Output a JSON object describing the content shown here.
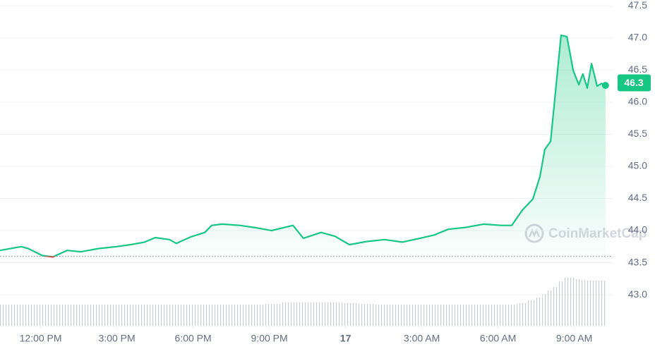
{
  "chart_data": {
    "type": "line",
    "x": [
      10.4,
      11.23,
      11.51,
      12.07,
      12.48,
      13.04,
      13.59,
      14.29,
      14.98,
      15.54,
      16.09,
      16.51,
      17.07,
      17.34,
      17.9,
      18.46,
      18.73,
      19.15,
      19.84,
      20.54,
      21.09,
      21.93,
      22.34,
      23.04,
      23.59,
      24.15,
      24.84,
      25.54,
      26.23,
      26.93,
      27.48,
      28.04,
      28.73,
      29.43,
      30.12,
      30.54,
      30.96,
      31.37,
      31.65,
      31.84,
      32.07,
      32.26,
      32.48,
      32.71,
      32.96,
      33.18,
      33.34,
      33.51,
      33.68,
      33.9,
      34.07,
      34.23
    ],
    "series": [
      {
        "color": "#16c784",
        "down_color": "#ea3943",
        "values": [
          43.69,
          43.75,
          43.72,
          43.61,
          43.59,
          43.69,
          43.67,
          43.72,
          43.75,
          43.78,
          43.82,
          43.89,
          43.86,
          43.8,
          43.9,
          43.97,
          44.08,
          44.1,
          44.08,
          44.04,
          44.0,
          44.08,
          43.88,
          43.97,
          43.91,
          43.78,
          43.83,
          43.86,
          43.82,
          43.88,
          43.93,
          44.02,
          44.05,
          44.1,
          44.08,
          44.08,
          44.32,
          44.49,
          44.84,
          45.26,
          45.39,
          46.16,
          47.04,
          47.02,
          46.49,
          46.27,
          46.44,
          46.22,
          46.6,
          46.25,
          46.29,
          46.26
        ]
      },
      {
        "color": "#c9ccd3",
        "values": [
          30,
          30,
          30,
          30,
          30,
          30,
          30,
          30,
          30,
          30,
          30,
          30,
          30,
          30,
          30,
          30,
          30,
          30,
          30,
          30,
          31,
          33,
          33,
          33,
          33,
          32,
          31,
          30,
          30,
          30,
          30,
          30,
          30,
          30,
          30,
          30,
          32,
          36,
          40,
          45,
          50,
          55,
          63,
          68,
          68,
          66,
          65,
          64,
          64,
          64,
          64,
          64
        ]
      }
    ],
    "baseline": 43.6,
    "current_price": 46.3,
    "watermark": "CoinMarketCap",
    "xlim": [
      10.4,
      34.4
    ],
    "xticks": [
      {
        "value": 12,
        "label": "12:00 PM"
      },
      {
        "value": 15,
        "label": "3:00 PM"
      },
      {
        "value": 18,
        "label": "6:00 PM"
      },
      {
        "value": 21,
        "label": "9:00 PM"
      },
      {
        "value": 24,
        "label": "17"
      },
      {
        "value": 27,
        "label": "3:00 AM"
      },
      {
        "value": 30,
        "label": "6:00 AM"
      },
      {
        "value": 33,
        "label": "9:00 AM"
      }
    ],
    "ylim": [
      42.54,
      47.59
    ],
    "yticks": [
      {
        "value": 43,
        "label": "43.0"
      },
      43.5,
      {
        "value": 44,
        "label": "44.0"
      },
      44.5,
      {
        "value": 45,
        "label": "45.0"
      },
      45.5,
      {
        "value": 46,
        "label": "46.0"
      },
      46.5,
      {
        "value": 47,
        "label": "47.0"
      },
      47.5
    ],
    "grid": true
  }
}
